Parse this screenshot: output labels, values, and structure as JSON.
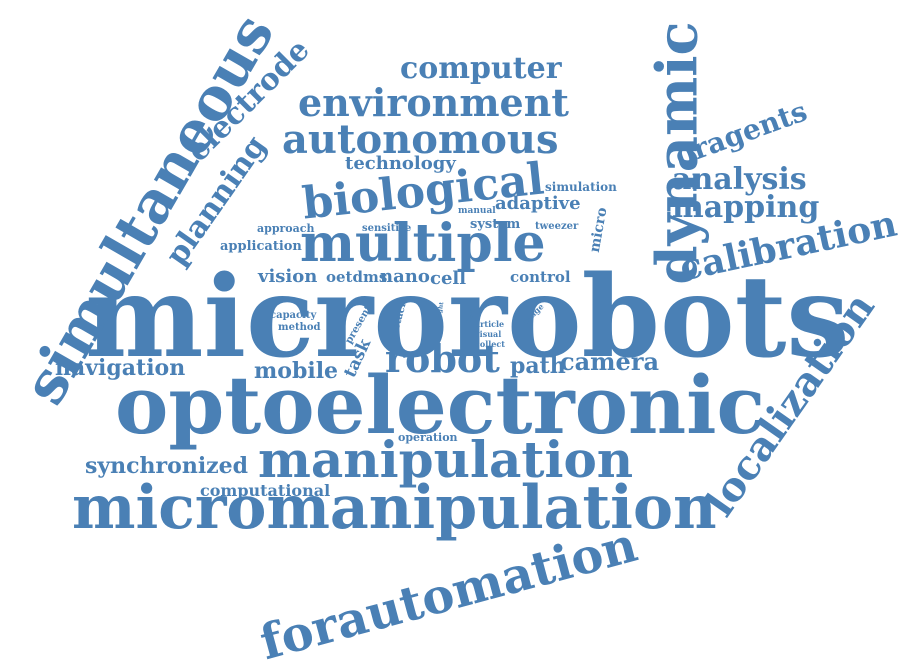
{
  "color": "#4a80b5",
  "words": [
    {
      "text": "microrobots"
    },
    {
      "text": "optoelectronic"
    },
    {
      "text": "micromanipulation"
    },
    {
      "text": "manipulation"
    },
    {
      "text": "multiple"
    },
    {
      "text": "simultaneous"
    },
    {
      "text": "dynamic"
    },
    {
      "text": "forautomation"
    },
    {
      "text": "localization"
    },
    {
      "text": "autonomous"
    },
    {
      "text": "environment"
    },
    {
      "text": "biological"
    },
    {
      "text": "calibration"
    },
    {
      "text": "computer"
    },
    {
      "text": "electrode"
    },
    {
      "text": "planning"
    },
    {
      "text": "oragents"
    },
    {
      "text": "analysis"
    },
    {
      "text": "mapping"
    },
    {
      "text": "robot"
    },
    {
      "text": "camera"
    },
    {
      "text": "path"
    },
    {
      "text": "navigation"
    },
    {
      "text": "mobile"
    },
    {
      "text": "synchronized"
    },
    {
      "text": "computational"
    },
    {
      "text": "technology"
    },
    {
      "text": "adaptive"
    },
    {
      "text": "simulation"
    },
    {
      "text": "vision"
    },
    {
      "text": "nano"
    },
    {
      "text": "cell"
    },
    {
      "text": "control"
    },
    {
      "text": "application"
    },
    {
      "text": "approach"
    },
    {
      "text": "sensitive"
    },
    {
      "text": "manual"
    },
    {
      "text": "system"
    },
    {
      "text": "tweezer"
    },
    {
      "text": "micro"
    },
    {
      "text": "oetdms"
    },
    {
      "text": "task"
    },
    {
      "text": "capacity"
    },
    {
      "text": "method"
    },
    {
      "text": "present"
    },
    {
      "text": "obstacle"
    },
    {
      "text": "light"
    },
    {
      "text": "real"
    },
    {
      "text": "range"
    },
    {
      "text": "article"
    },
    {
      "text": "visual"
    },
    {
      "text": "collect"
    },
    {
      "text": "operation"
    }
  ]
}
